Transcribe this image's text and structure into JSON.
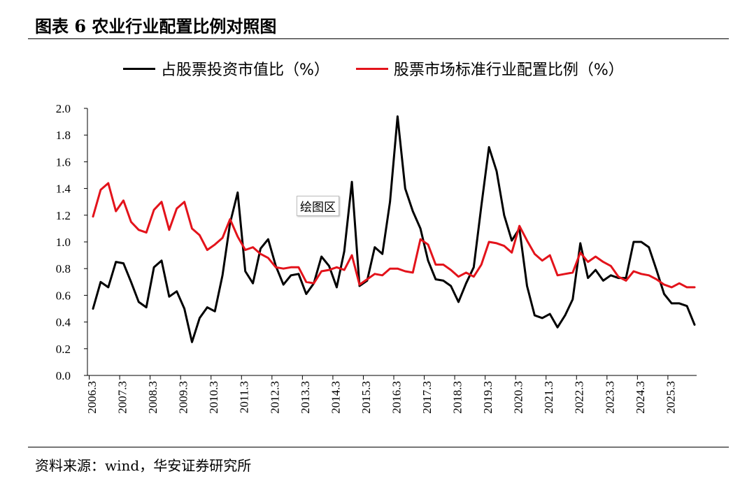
{
  "header": {
    "title": "图表 6 农业行业配置比例对照图"
  },
  "footer": {
    "source": "资料来源：wind，华安证券研究所"
  },
  "plot_area_label": "绘图区",
  "colors": {
    "series1": "#000000",
    "series2": "#e3131b"
  },
  "chart_data": {
    "type": "line",
    "title": "农业行业配置比例对照图",
    "xlabel": "",
    "ylabel": "",
    "ylim": [
      0,
      2.0
    ],
    "yticks": [
      "0.0",
      "0.2",
      "0.4",
      "0.6",
      "0.8",
      "1.0",
      "1.2",
      "1.4",
      "1.6",
      "1.8",
      "2.0"
    ],
    "xtick_labels": [
      "2006.3",
      "2007.3",
      "2008.3",
      "2009.3",
      "2010.3",
      "2011.3",
      "2012.3",
      "2013.3",
      "2014.3",
      "2015.3",
      "2016.3",
      "2017.3",
      "2018.3",
      "2019.3",
      "2020.3",
      "2021.3",
      "2022.3",
      "2023.3",
      "2024.3",
      "2025.3"
    ],
    "periods_per_year": 4,
    "grid": false,
    "legend": "top",
    "series": [
      {
        "name": "占股票投资市值比（%）",
        "color": "#000000",
        "values": [
          0.5,
          0.7,
          0.66,
          0.85,
          0.84,
          0.7,
          0.55,
          0.51,
          0.81,
          0.86,
          0.59,
          0.63,
          0.5,
          0.25,
          0.43,
          0.51,
          0.48,
          0.75,
          1.14,
          1.37,
          0.78,
          0.69,
          0.95,
          1.02,
          0.82,
          0.68,
          0.75,
          0.76,
          0.61,
          0.69,
          0.89,
          0.82,
          0.66,
          0.93,
          1.45,
          0.67,
          0.71,
          0.96,
          0.91,
          1.3,
          1.94,
          1.4,
          1.23,
          1.1,
          0.86,
          0.72,
          0.71,
          0.67,
          0.55,
          0.69,
          0.81,
          1.27,
          1.71,
          1.53,
          1.2,
          1.01,
          1.1,
          0.67,
          0.45,
          0.43,
          0.46,
          0.36,
          0.45,
          0.57,
          0.99,
          0.73,
          0.79,
          0.71,
          0.75,
          0.73,
          0.73,
          1.0,
          1.0,
          0.96,
          0.79,
          0.61,
          0.54,
          0.54,
          0.52,
          0.38
        ]
      },
      {
        "name": "股票市场标准行业配置比例（%）",
        "color": "#e3131b",
        "values": [
          1.19,
          1.39,
          1.44,
          1.23,
          1.31,
          1.15,
          1.09,
          1.07,
          1.24,
          1.3,
          1.09,
          1.25,
          1.3,
          1.1,
          1.05,
          0.94,
          0.98,
          1.03,
          1.17,
          1.04,
          0.94,
          0.96,
          0.91,
          0.88,
          0.81,
          0.8,
          0.81,
          0.81,
          0.7,
          0.69,
          0.78,
          0.79,
          0.81,
          0.79,
          0.9,
          0.68,
          0.72,
          0.76,
          0.75,
          0.8,
          0.8,
          0.78,
          0.77,
          1.02,
          0.98,
          0.83,
          0.83,
          0.79,
          0.74,
          0.77,
          0.74,
          0.83,
          1.0,
          0.99,
          0.97,
          0.92,
          1.12,
          1.01,
          0.91,
          0.86,
          0.9,
          0.75,
          0.76,
          0.77,
          0.92,
          0.85,
          0.89,
          0.85,
          0.82,
          0.74,
          0.71,
          0.78,
          0.76,
          0.75,
          0.72,
          0.68,
          0.66,
          0.69,
          0.66,
          0.66
        ]
      }
    ]
  }
}
